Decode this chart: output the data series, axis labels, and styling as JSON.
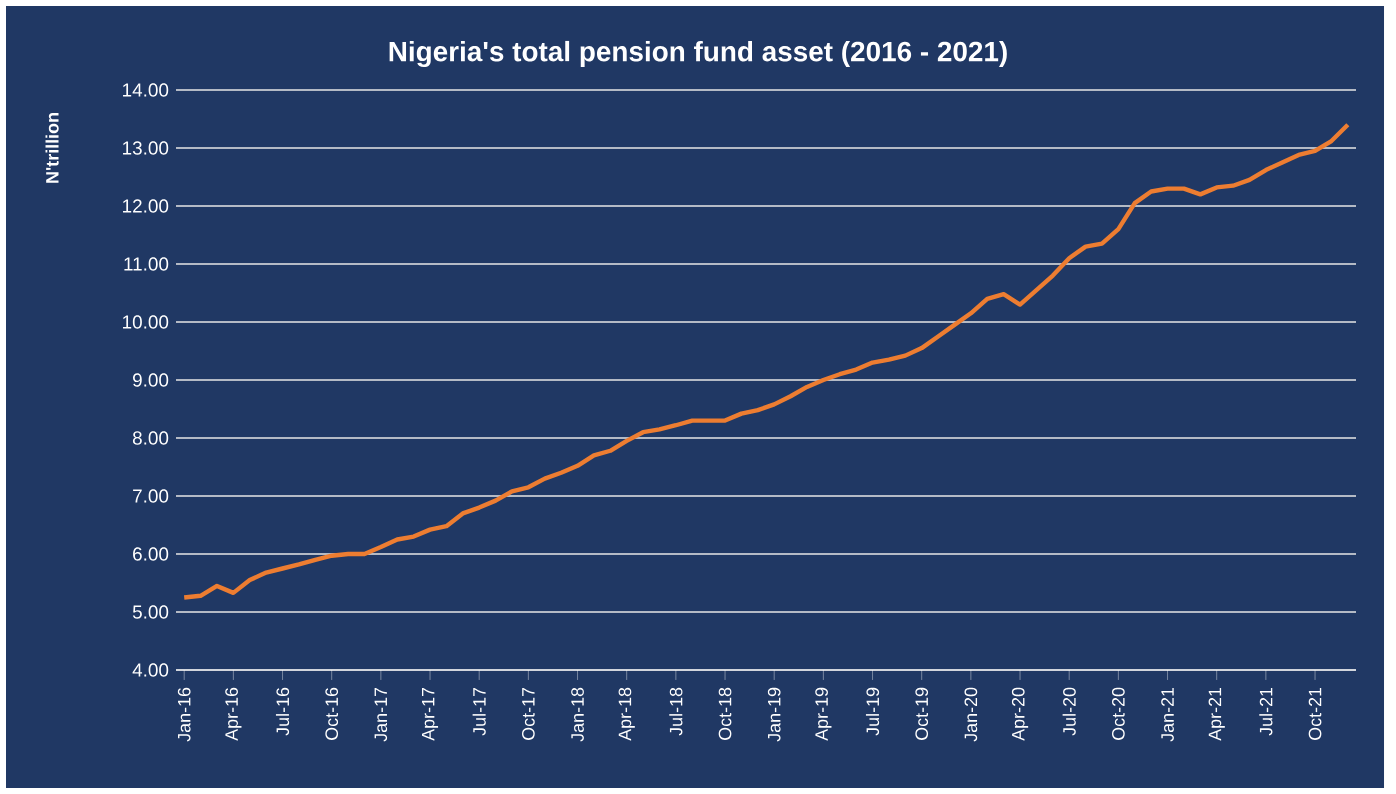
{
  "chart_data": {
    "type": "line",
    "title": "Nigeria's total pension fund asset (2016 - 2021)",
    "ylabel": "N'trillion",
    "categories": [
      "Jan-16",
      null,
      null,
      "Apr-16",
      null,
      null,
      "Jul-16",
      null,
      null,
      "Oct-16",
      null,
      null,
      "Jan-17",
      null,
      null,
      "Apr-17",
      null,
      null,
      "Jul-17",
      null,
      null,
      "Oct-17",
      null,
      null,
      "Jan-18",
      null,
      null,
      "Apr-18",
      null,
      null,
      "Jul-18",
      null,
      null,
      "Oct-18",
      null,
      null,
      "Jan-19",
      null,
      null,
      "Apr-19",
      null,
      null,
      "Jul-19",
      null,
      null,
      "Oct-19",
      null,
      null,
      "Jan-20",
      null,
      null,
      "Apr-20",
      null,
      null,
      "Jul-20",
      null,
      null,
      "Oct-20",
      null,
      null,
      "Jan-21",
      null,
      null,
      "Apr-21",
      null,
      null,
      "Jul-21",
      null,
      null,
      "Oct-21",
      null,
      null
    ],
    "series": [
      {
        "color": "#ed7d31",
        "values": [
          5.25,
          5.28,
          5.45,
          5.33,
          5.55,
          5.68,
          5.75,
          5.82,
          5.9,
          5.97,
          6.0,
          6.0,
          6.12,
          6.25,
          6.3,
          6.42,
          6.48,
          6.7,
          6.8,
          6.92,
          7.08,
          7.15,
          7.3,
          7.4,
          7.52,
          7.7,
          7.78,
          7.95,
          8.1,
          8.15,
          8.22,
          8.3,
          8.3,
          8.3,
          8.42,
          8.48,
          8.58,
          8.72,
          8.88,
          9.0,
          9.1,
          9.18,
          9.3,
          9.35,
          9.42,
          9.55,
          9.75,
          9.95,
          10.15,
          10.4,
          10.48,
          10.3,
          10.55,
          10.8,
          11.1,
          11.3,
          11.35,
          11.6,
          12.05,
          12.25,
          12.3,
          12.3,
          12.2,
          12.32,
          12.35,
          12.45,
          12.62,
          12.75,
          12.88,
          12.95,
          13.12,
          13.4
        ]
      }
    ],
    "ylim": [
      4,
      14
    ],
    "yticks": [
      {
        "value": 4,
        "label": "4.00"
      },
      {
        "value": 5,
        "label": "5.00"
      },
      {
        "value": 6,
        "label": "6.00"
      },
      {
        "value": 7,
        "label": "7.00"
      },
      {
        "value": 8,
        "label": "8.00"
      },
      {
        "value": 9,
        "label": "9.00"
      },
      {
        "value": 10,
        "label": "10.00"
      },
      {
        "value": 11,
        "label": "11.00"
      },
      {
        "value": 12,
        "label": "12.00"
      },
      {
        "value": 13,
        "label": "13.00"
      },
      {
        "value": 14,
        "label": "14.00"
      }
    ],
    "grid": "y",
    "marker": "none",
    "line_style": "solid"
  }
}
